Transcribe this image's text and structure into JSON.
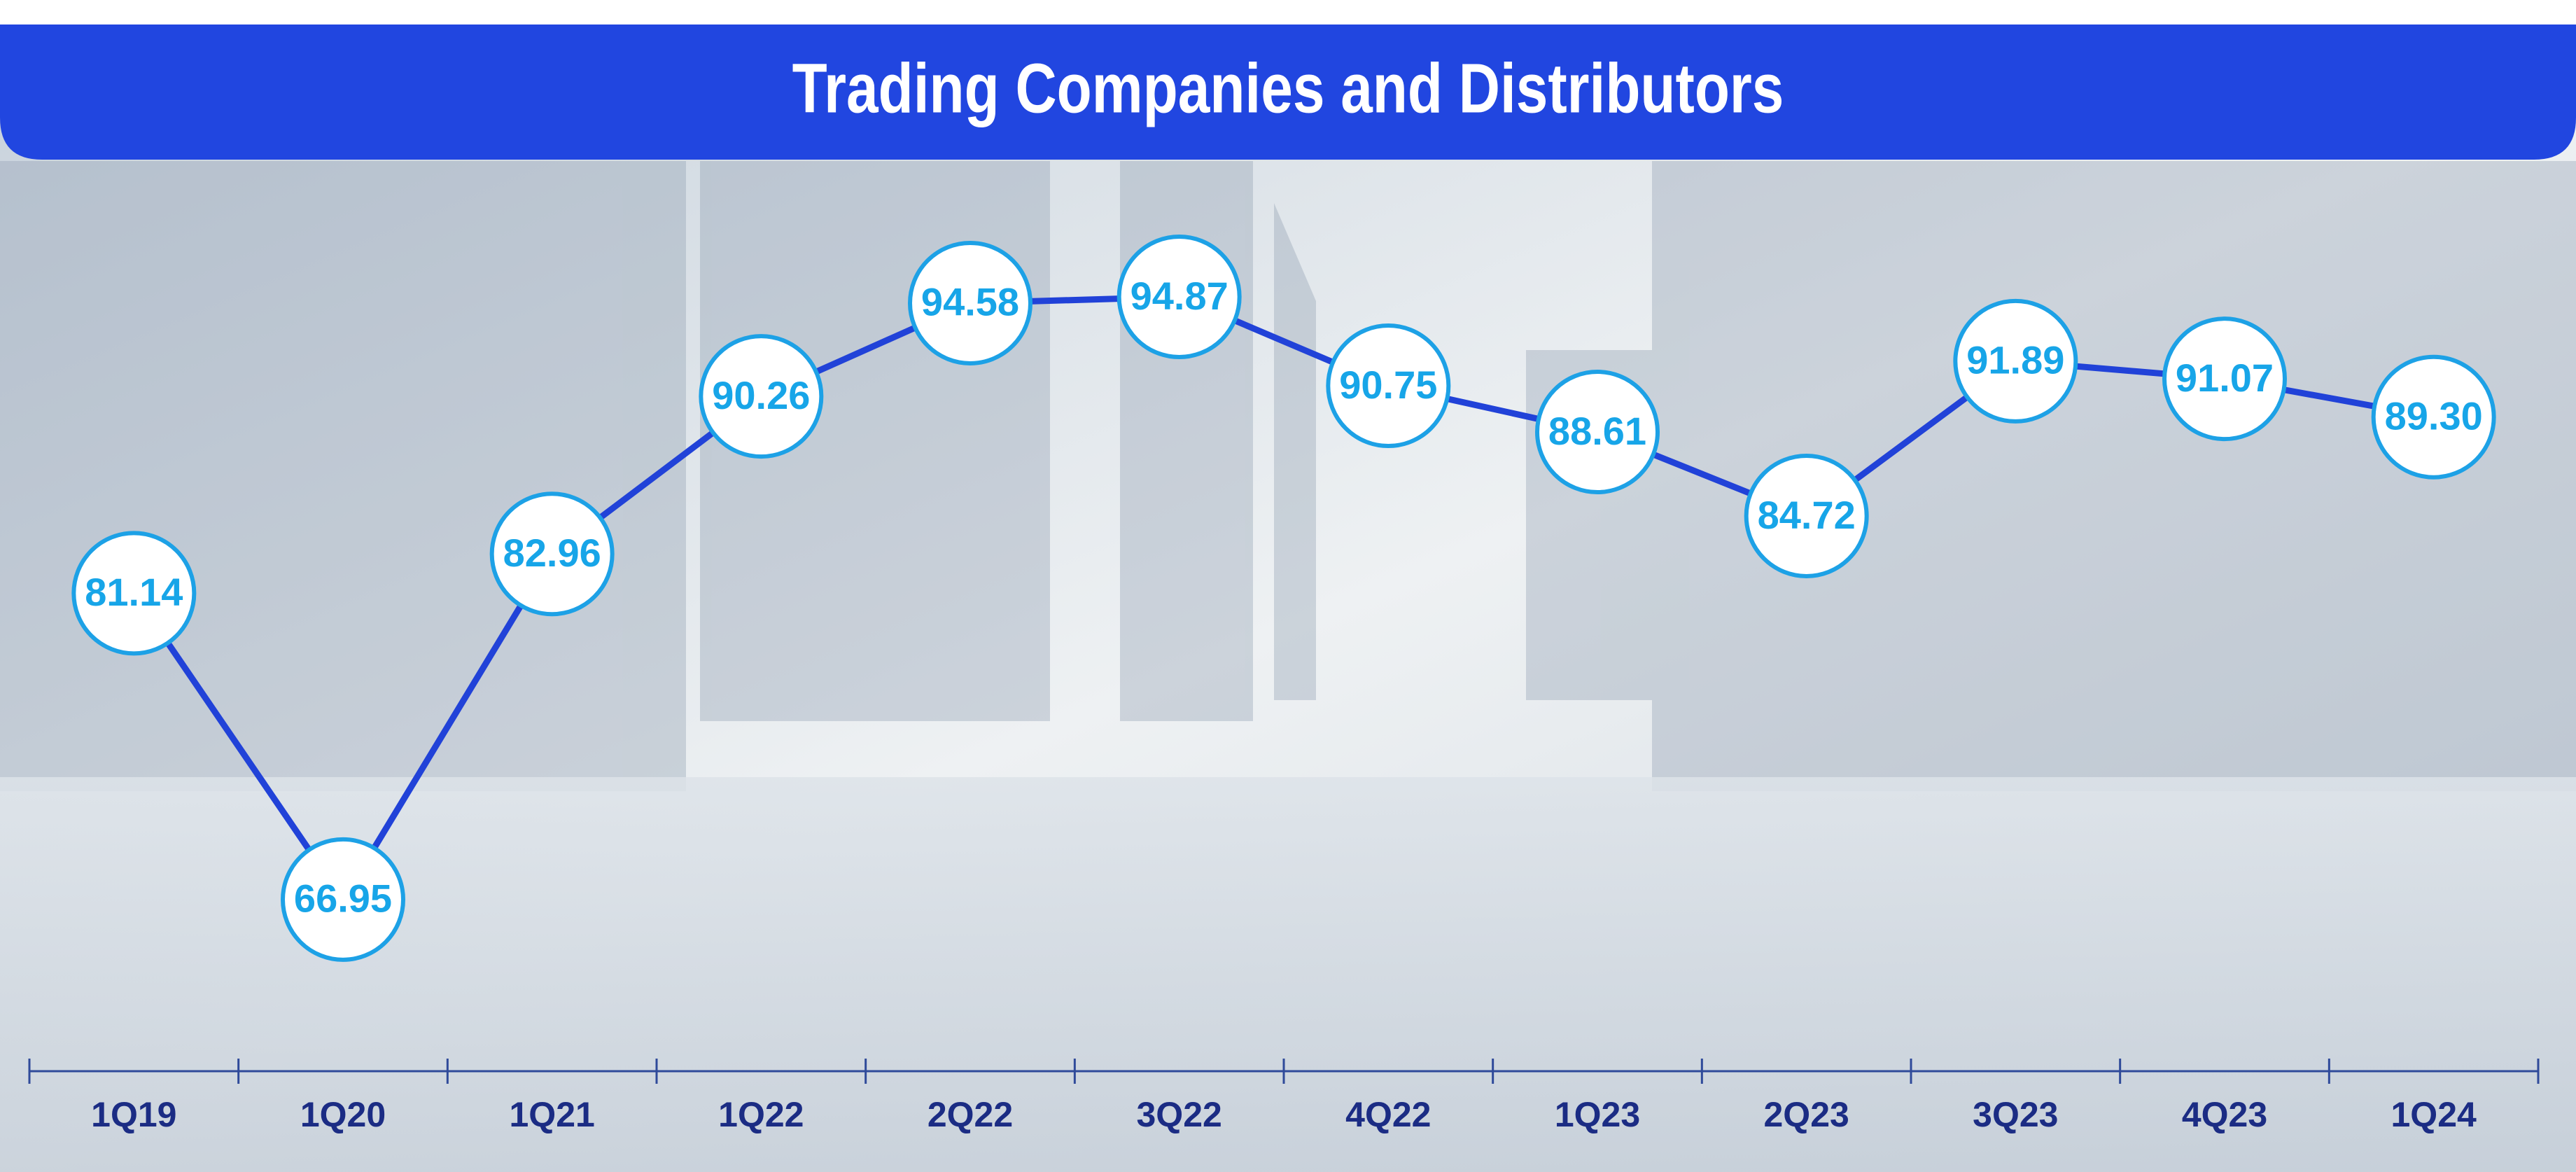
{
  "chart_data": {
    "type": "line",
    "title": "Trading Companies and Distributors",
    "categories": [
      "1Q19",
      "1Q20",
      "1Q21",
      "1Q22",
      "2Q22",
      "3Q22",
      "4Q22",
      "1Q23",
      "2Q23",
      "3Q23",
      "4Q23",
      "1Q24"
    ],
    "values": [
      81.14,
      66.95,
      82.96,
      90.26,
      94.58,
      94.87,
      90.75,
      88.61,
      84.72,
      91.89,
      91.07,
      89.3
    ],
    "value_labels": [
      "81.14",
      "66.95",
      "82.96",
      "90.26",
      "94.58",
      "94.87",
      "90.75",
      "88.61",
      "84.72",
      "91.89",
      "91.07",
      "89.30"
    ],
    "color": "#2142d8",
    "ylim": [
      59,
      101
    ]
  }
}
